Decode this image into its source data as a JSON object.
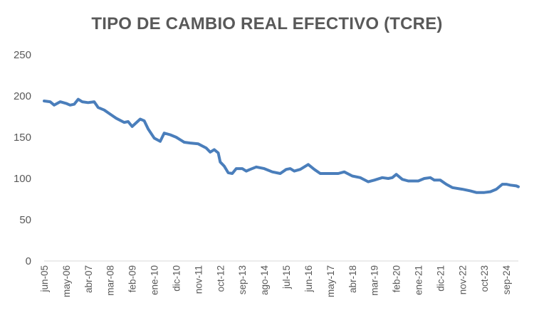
{
  "chart_data": {
    "type": "line",
    "title": "TIPO DE CAMBIO REAL EFECTIVO (TCRE)",
    "xlabel": "",
    "ylabel": "",
    "ylim": [
      0,
      250
    ],
    "yticks": [
      0,
      50,
      100,
      150,
      200,
      250
    ],
    "grid": false,
    "legend": "none",
    "line_color": "#4a7ebb",
    "x_tick_labels": [
      "jun-05",
      "may-06",
      "abr-07",
      "mar-08",
      "feb-09",
      "ene-10",
      "dic-10",
      "nov-11",
      "oct-12",
      "sep-13",
      "ago-14",
      "jul-15",
      "jun-16",
      "may-17",
      "abr-18",
      "mar-19",
      "feb-20",
      "ene-21",
      "dic-21",
      "nov-22",
      "oct-23",
      "sep-24"
    ],
    "series": [
      {
        "values": [
          {
            "x": "jun-05",
            "y": 194
          },
          {
            "x": "sep-05",
            "y": 193
          },
          {
            "x": "nov-05",
            "y": 189
          },
          {
            "x": "feb-06",
            "y": 193
          },
          {
            "x": "may-06",
            "y": 191
          },
          {
            "x": "jul-06",
            "y": 189
          },
          {
            "x": "sep-06",
            "y": 190
          },
          {
            "x": "nov-06",
            "y": 196
          },
          {
            "x": "ene-07",
            "y": 193
          },
          {
            "x": "abr-07",
            "y": 192
          },
          {
            "x": "jul-07",
            "y": 193
          },
          {
            "x": "sep-07",
            "y": 186
          },
          {
            "x": "dic-07",
            "y": 183
          },
          {
            "x": "mar-08",
            "y": 178
          },
          {
            "x": "jun-08",
            "y": 173
          },
          {
            "x": "oct-08",
            "y": 168
          },
          {
            "x": "dic-08",
            "y": 169
          },
          {
            "x": "feb-09",
            "y": 163
          },
          {
            "x": "jun-09",
            "y": 172
          },
          {
            "x": "ago-09",
            "y": 170
          },
          {
            "x": "oct-09",
            "y": 160
          },
          {
            "x": "ene-10",
            "y": 149
          },
          {
            "x": "abr-10",
            "y": 145
          },
          {
            "x": "jun-10",
            "y": 155
          },
          {
            "x": "sep-10",
            "y": 153
          },
          {
            "x": "dic-10",
            "y": 150
          },
          {
            "x": "abr-11",
            "y": 144
          },
          {
            "x": "jul-11",
            "y": 143
          },
          {
            "x": "nov-11",
            "y": 142
          },
          {
            "x": "mar-12",
            "y": 137
          },
          {
            "x": "may-12",
            "y": 132
          },
          {
            "x": "jul-12",
            "y": 135
          },
          {
            "x": "sep-12",
            "y": 131
          },
          {
            "x": "oct-12",
            "y": 120
          },
          {
            "x": "dic-12",
            "y": 115
          },
          {
            "x": "feb-13",
            "y": 107
          },
          {
            "x": "abr-13",
            "y": 106
          },
          {
            "x": "jun-13",
            "y": 112
          },
          {
            "x": "sep-13",
            "y": 112
          },
          {
            "x": "nov-13",
            "y": 109
          },
          {
            "x": "ene-14",
            "y": 111
          },
          {
            "x": "abr-14",
            "y": 114
          },
          {
            "x": "ago-14",
            "y": 112
          },
          {
            "x": "dic-14",
            "y": 108
          },
          {
            "x": "abr-15",
            "y": 106
          },
          {
            "x": "jul-15",
            "y": 111
          },
          {
            "x": "sep-15",
            "y": 112
          },
          {
            "x": "nov-15",
            "y": 109
          },
          {
            "x": "feb-16",
            "y": 111
          },
          {
            "x": "jun-16",
            "y": 117
          },
          {
            "x": "sep-16",
            "y": 111
          },
          {
            "x": "dic-16",
            "y": 106
          },
          {
            "x": "may-17",
            "y": 106
          },
          {
            "x": "sep-17",
            "y": 106
          },
          {
            "x": "dic-17",
            "y": 108
          },
          {
            "x": "abr-18",
            "y": 103
          },
          {
            "x": "ago-18",
            "y": 101
          },
          {
            "x": "dic-18",
            "y": 96
          },
          {
            "x": "mar-19",
            "y": 98
          },
          {
            "x": "jul-19",
            "y": 101
          },
          {
            "x": "oct-19",
            "y": 100
          },
          {
            "x": "dic-19",
            "y": 101
          },
          {
            "x": "feb-20",
            "y": 105
          },
          {
            "x": "may-20",
            "y": 99
          },
          {
            "x": "ago-20",
            "y": 97
          },
          {
            "x": "ene-21",
            "y": 97
          },
          {
            "x": "abr-21",
            "y": 100
          },
          {
            "x": "jul-21",
            "y": 101
          },
          {
            "x": "sep-21",
            "y": 98
          },
          {
            "x": "dic-21",
            "y": 98
          },
          {
            "x": "mar-22",
            "y": 93
          },
          {
            "x": "jun-22",
            "y": 89
          },
          {
            "x": "nov-22",
            "y": 87
          },
          {
            "x": "mar-23",
            "y": 85
          },
          {
            "x": "jun-23",
            "y": 83
          },
          {
            "x": "oct-23",
            "y": 83
          },
          {
            "x": "ene-24",
            "y": 84
          },
          {
            "x": "abr-24",
            "y": 87
          },
          {
            "x": "jul-24",
            "y": 93
          },
          {
            "x": "sep-24",
            "y": 93
          },
          {
            "x": "nov-24",
            "y": 92
          },
          {
            "x": "feb-25",
            "y": 91
          },
          {
            "x": "mar-25",
            "y": 90
          }
        ]
      }
    ]
  }
}
